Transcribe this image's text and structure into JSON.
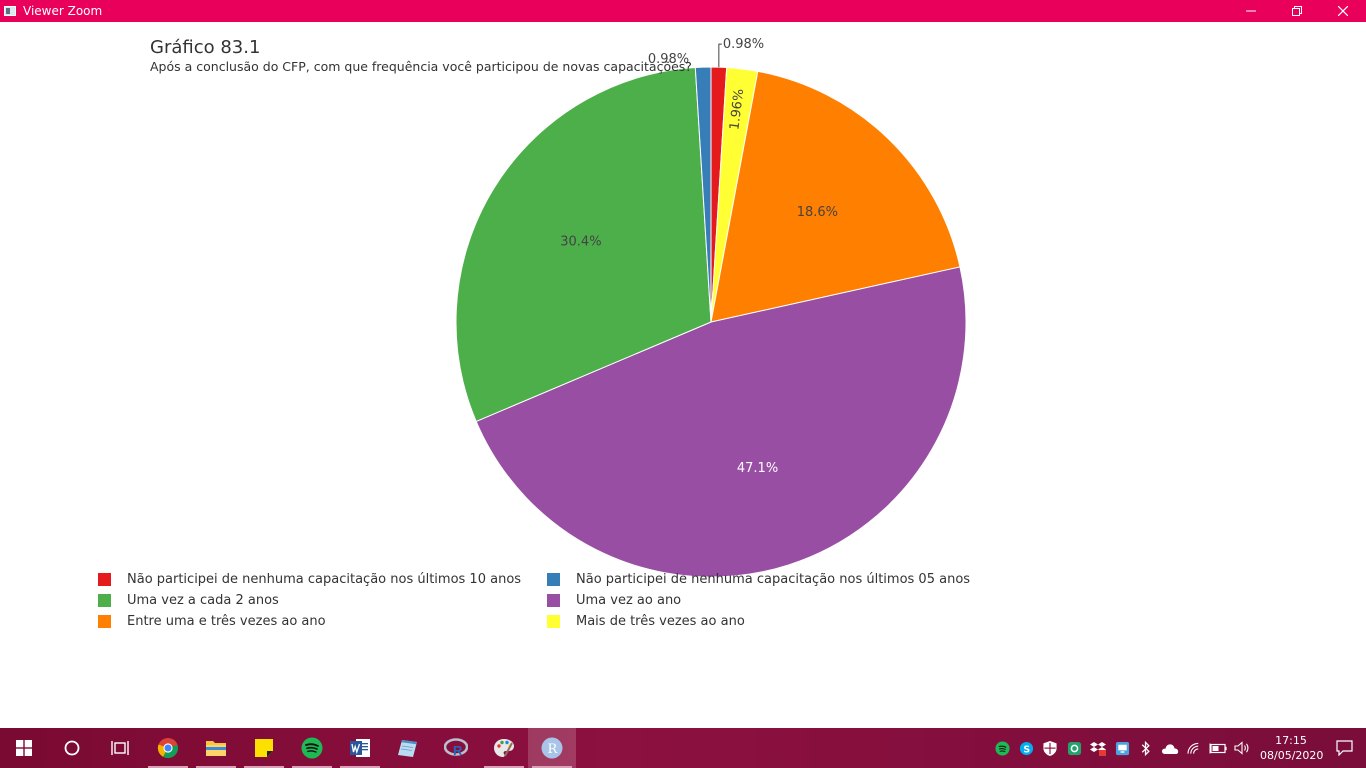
{
  "window": {
    "title": "Viewer Zoom",
    "controls": {
      "minimize_icon": "minimize-icon",
      "restore_icon": "restore-icon",
      "close_icon": "close-icon"
    }
  },
  "colors": {
    "titlebar": "#e8005a",
    "taskbar": "#8c1040"
  },
  "chart_data": {
    "type": "pie",
    "title": "Gráfico 83.1",
    "subtitle": "Após a conclusão do CFP, com que frequência você participou de novas capacitações?",
    "slices": [
      {
        "name": "Não participei de nenhuma capacitação nos últimos 10 anos",
        "value": 0.98,
        "label": "0.98%",
        "color": "#e41a1c"
      },
      {
        "name": "Mais de três vezes ao ano",
        "value": 1.96,
        "label": "1.96%",
        "color": "#ffff33"
      },
      {
        "name": "Entre uma e três vezes ao ano",
        "value": 18.6,
        "label": "18.6%",
        "color": "#ff7f00"
      },
      {
        "name": "Uma vez ao ano",
        "value": 47.1,
        "label": "47.1%",
        "color": "#984ea3"
      },
      {
        "name": "Uma vez a cada 2 anos",
        "value": 30.4,
        "label": "30.4%",
        "color": "#4daf4a"
      },
      {
        "name": "Não participei de nenhuma capacitação nos últimos 05 anos",
        "value": 0.98,
        "label": "0.98%",
        "color": "#377eb8"
      }
    ],
    "legend": {
      "placement": "bottom-left",
      "items": [
        {
          "label": "Não participei de nenhuma capacitação nos últimos 10 anos",
          "color": "#e41a1c"
        },
        {
          "label": "Não participei de nenhuma capacitação nos últimos 05 anos",
          "color": "#377eb8"
        },
        {
          "label": "Uma vez a cada 2 anos",
          "color": "#4daf4a"
        },
        {
          "label": "Uma vez ao ano",
          "color": "#984ea3"
        },
        {
          "label": "Entre uma e três vezes ao ano",
          "color": "#ff7f00"
        },
        {
          "label": "Mais de três vezes ao ano",
          "color": "#ffff33"
        }
      ]
    }
  },
  "taskbar": {
    "apps": [
      {
        "name": "start-button",
        "icon": "windows-icon"
      },
      {
        "name": "search-button",
        "icon": "search-circle-icon"
      },
      {
        "name": "task-view-button",
        "icon": "task-view-icon"
      },
      {
        "name": "chrome-button",
        "icon": "chrome-icon"
      },
      {
        "name": "file-explorer-button",
        "icon": "folder-icon"
      },
      {
        "name": "sticky-notes-button",
        "icon": "sticky-note-icon"
      },
      {
        "name": "spotify-button",
        "icon": "spotify-icon"
      },
      {
        "name": "word-button",
        "icon": "word-icon"
      },
      {
        "name": "notepad-button",
        "icon": "notepad-icon"
      },
      {
        "name": "rstudio-button",
        "icon": "r-icon"
      },
      {
        "name": "paint-button",
        "icon": "palette-icon"
      },
      {
        "name": "r-gui-button",
        "icon": "r-gui-icon"
      }
    ],
    "clock": {
      "time": "17:15",
      "date": "08/05/2020"
    }
  }
}
